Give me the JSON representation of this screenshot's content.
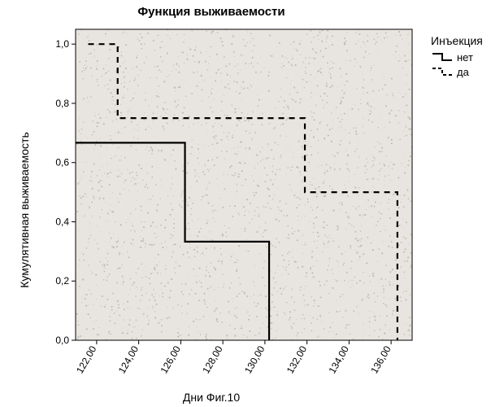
{
  "title": "Функция выживаемости",
  "x_axis_label": "Дни  Фиг.10",
  "y_axis_label": "Кумулятивная выживаемость",
  "legend": {
    "title": "Инъекция",
    "items": [
      {
        "label": "нет",
        "stroke": "#000000",
        "dash": ""
      },
      {
        "label": "да",
        "stroke": "#000000",
        "dash": "6,5"
      }
    ]
  },
  "chart": {
    "type": "step-line",
    "background_color": "#e8e5e0",
    "plot_border_color": "#000000",
    "noise_dot_color": "#9c998f",
    "xlim": [
      121,
      137
    ],
    "ylim": [
      0.0,
      1.05
    ],
    "x_ticks": [
      122.0,
      124.0,
      126.0,
      128.0,
      130.0,
      132.0,
      134.0,
      136.0
    ],
    "x_tick_labels": [
      "122,00",
      "124,00",
      "126,00",
      "128,00",
      "130,00",
      "132,00",
      "134,00",
      "136,00"
    ],
    "y_ticks": [
      0.0,
      0.2,
      0.4,
      0.6,
      0.8,
      1.0
    ],
    "y_tick_labels": [
      "0,0",
      "0,2",
      "0,4",
      "0,6",
      "0,8",
      "1,0"
    ],
    "tick_fontsize": 12,
    "line_width": 2.2,
    "series": [
      {
        "name": "нет",
        "stroke": "#000000",
        "dash": "",
        "points": [
          [
            121.0,
            0.667
          ],
          [
            126.2,
            0.667
          ],
          [
            126.2,
            0.333
          ],
          [
            130.2,
            0.333
          ],
          [
            130.2,
            0.0
          ]
        ]
      },
      {
        "name": "да",
        "stroke": "#000000",
        "dash": "7,6",
        "points": [
          [
            121.6,
            1.0
          ],
          [
            123.0,
            1.0
          ],
          [
            123.0,
            0.75
          ],
          [
            131.9,
            0.75
          ],
          [
            131.9,
            0.5
          ],
          [
            136.3,
            0.5
          ],
          [
            136.3,
            0.0
          ]
        ]
      }
    ]
  }
}
